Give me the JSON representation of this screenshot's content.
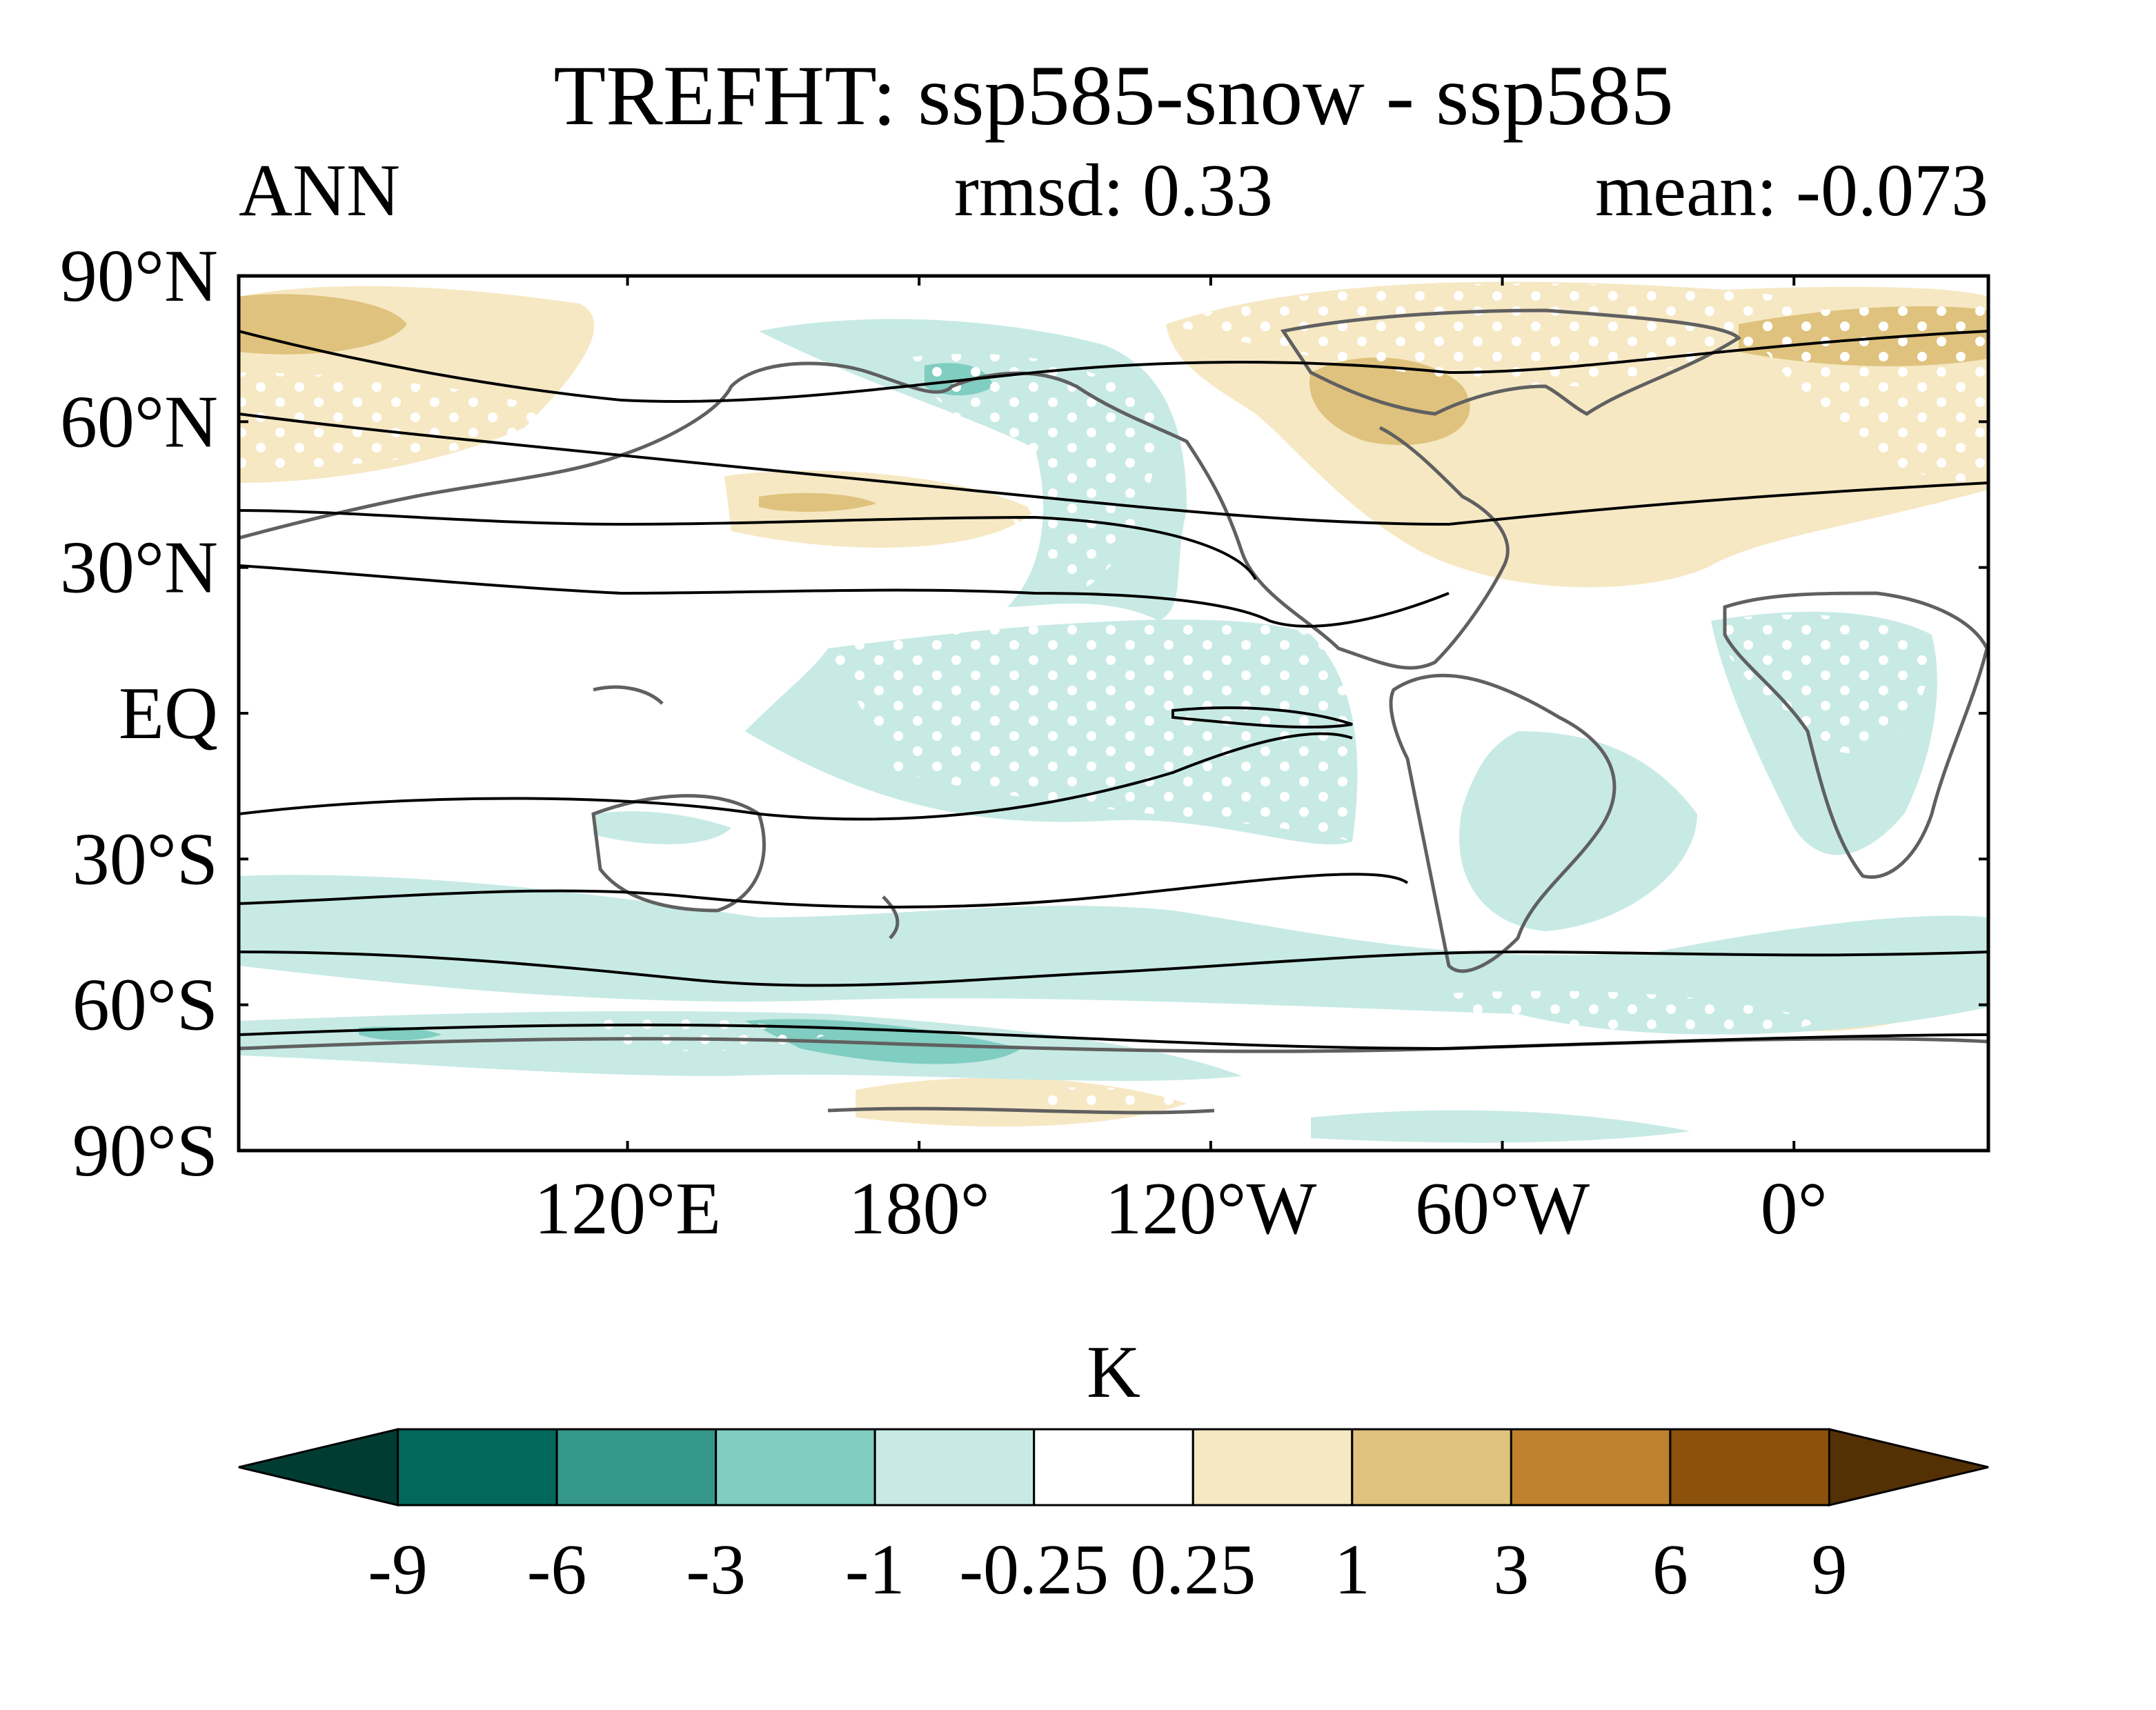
{
  "title": "TREFHT: ssp585-snow - ssp585",
  "left_label": "ANN",
  "center_label": "rmsd: 0.33",
  "right_label": "mean: -0.073",
  "map": {
    "lat_ticks": [
      "90°N",
      "60°N",
      "30°N",
      "EQ",
      "30°S",
      "60°S",
      "90°S"
    ],
    "lat_values": [
      90,
      60,
      30,
      0,
      -30,
      -60,
      -90
    ],
    "lon_ticks": [
      "120°E",
      "180°",
      "120°W",
      "60°W",
      "0°"
    ],
    "lon_values": [
      120,
      180,
      240,
      300,
      360
    ],
    "lon_range": [
      40,
      400
    ],
    "lat_range": [
      -90,
      90
    ],
    "stippling": "white dots mark significant regions",
    "coastline_color": "#606060",
    "contour_color": "#000000"
  },
  "colorbar": {
    "unit": "K",
    "levels": [
      "-9",
      "-6",
      "-3",
      "-1",
      "-0.25",
      "0.25",
      "1",
      "3",
      "6",
      "9"
    ],
    "colors": [
      "#013c33",
      "#02675d",
      "#35968a",
      "#80cdc1",
      "#c7eae5",
      "#ffffff",
      "#f6e8c3",
      "#dfc27d",
      "#bf812d",
      "#8c510a",
      "#543005"
    ]
  }
}
